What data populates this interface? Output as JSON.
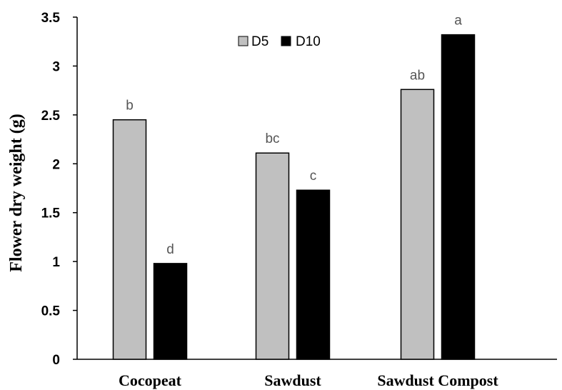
{
  "chart_data": {
    "type": "bar",
    "categories": [
      "Cocopeat",
      "Sawdust",
      "Sawdust Compost"
    ],
    "series": [
      {
        "name": "D5",
        "values": [
          2.45,
          2.11,
          2.76
        ],
        "color": "#c0c0c0",
        "labels": [
          "b",
          "bc",
          "ab"
        ]
      },
      {
        "name": "D10",
        "values": [
          0.98,
          1.73,
          3.32
        ],
        "color": "#000000",
        "labels": [
          "d",
          "c",
          "a"
        ]
      }
    ],
    "ylabel": "Flower dry weight (g)",
    "xlabel": "",
    "ylim": [
      0,
      3.5
    ],
    "yticks": [
      "0",
      "0.5",
      "1",
      "1.5",
      "2",
      "2.5",
      "3",
      "3.5"
    ],
    "grid": false,
    "legend_position": "top-center"
  }
}
